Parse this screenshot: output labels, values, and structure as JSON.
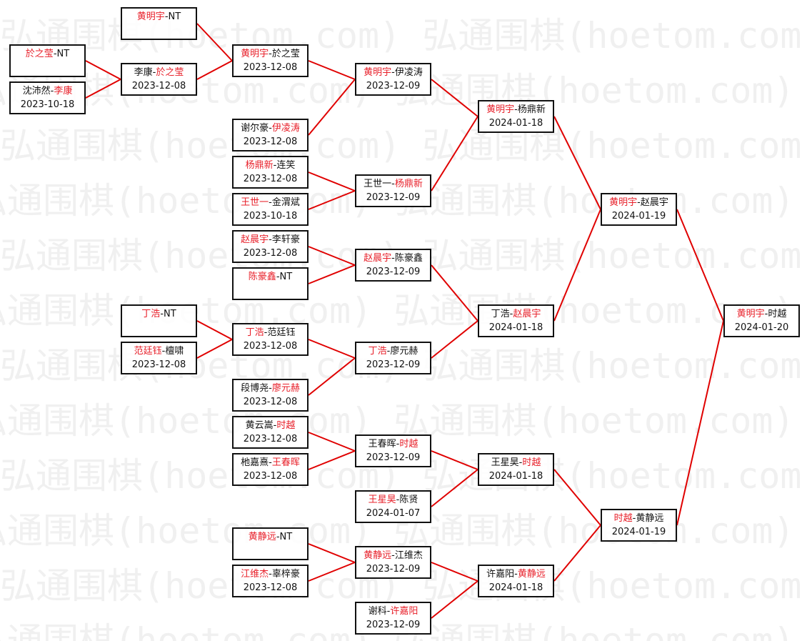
{
  "watermark": "弘通围棋(hoetom.com)",
  "colors": {
    "winner": "#e8202a",
    "connector": "#e00000",
    "border": "#111111"
  },
  "matches": [
    {
      "a": "於之莹",
      "b": "NT",
      "winner": "a",
      "date": "",
      "round": 1,
      "feeds_into": 3
    },
    {
      "a": "沈沛然",
      "b": "李康",
      "winner": "b",
      "date": "2023-10-18",
      "round": 1,
      "feeds_into": 3
    },
    {
      "a": "黄明宇",
      "b": "NT",
      "winner": "a",
      "date": "",
      "round": 2,
      "feeds_into": 6
    },
    {
      "a": "李康",
      "b": "於之莹",
      "winner": "b",
      "date": "2023-12-08",
      "round": 2,
      "feeds_into": 6
    },
    {
      "a": "丁浩",
      "b": "NT",
      "winner": "a",
      "date": "",
      "round": 2,
      "feeds_into": 12
    },
    {
      "a": "范廷钰",
      "b": "檀啸",
      "winner": "a",
      "date": "2023-12-08",
      "round": 2,
      "feeds_into": 12
    },
    {
      "a": "黄明宇",
      "b": "於之莹",
      "winner": "a",
      "date": "2023-12-08",
      "round": 3,
      "feeds_into": 18
    },
    {
      "a": "谢尔豪",
      "b": "伊凌涛",
      "winner": "b",
      "date": "2023-12-08",
      "round": 3,
      "feeds_into": 18
    },
    {
      "a": "杨鼎新",
      "b": "连笑",
      "winner": "a",
      "date": "2023-12-08",
      "round": 3,
      "feeds_into": 19
    },
    {
      "a": "王世一",
      "b": "金渭斌",
      "winner": "a",
      "date": "2023-10-18",
      "round": 3,
      "feeds_into": 19
    },
    {
      "a": "赵晨宇",
      "b": "李轩豪",
      "winner": "a",
      "date": "2023-12-08",
      "round": 3,
      "feeds_into": 20
    },
    {
      "a": "陈豪鑫",
      "b": "NT",
      "winner": "a",
      "date": "",
      "round": 3,
      "feeds_into": 20
    },
    {
      "a": "丁浩",
      "b": "范廷钰",
      "winner": "a",
      "date": "2023-12-08",
      "round": 3,
      "feeds_into": 21
    },
    {
      "a": "段博尧",
      "b": "廖元赫",
      "winner": "b",
      "date": "2023-12-08",
      "round": 3,
      "feeds_into": 21
    },
    {
      "a": "黄云嵩",
      "b": "时越",
      "winner": "b",
      "date": "2023-12-08",
      "round": 3,
      "feeds_into": 22
    },
    {
      "a": "杝嘉熹",
      "b": "王春晖",
      "winner": "b",
      "date": "2023-12-08",
      "round": 3,
      "feeds_into": 22
    },
    {
      "a": "黄静远",
      "b": "NT",
      "winner": "a",
      "date": "",
      "round": 3,
      "feeds_into": 24
    },
    {
      "a": "江维杰",
      "b": "辜梓豪",
      "winner": "a",
      "date": "2023-12-08",
      "round": 3,
      "feeds_into": 24
    },
    {
      "a": "黄明宇",
      "b": "伊凌涛",
      "winner": "a",
      "date": "2023-12-09",
      "round": 4,
      "feeds_into": 26
    },
    {
      "a": "王世一",
      "b": "杨鼎新",
      "winner": "b",
      "date": "2023-12-09",
      "round": 4,
      "feeds_into": 26
    },
    {
      "a": "赵晨宇",
      "b": "陈豪鑫",
      "winner": "a",
      "date": "2023-12-09",
      "round": 4,
      "feeds_into": 27
    },
    {
      "a": "丁浩",
      "b": "廖元赫",
      "winner": "a",
      "date": "2023-12-09",
      "round": 4,
      "feeds_into": 27
    },
    {
      "a": "王春晖",
      "b": "时越",
      "winner": "b",
      "date": "2023-12-09",
      "round": 4,
      "feeds_into": 28
    },
    {
      "a": "王星昊",
      "b": "陈贤",
      "winner": "a",
      "date": "2024-01-07",
      "round": 4,
      "feeds_into": 28
    },
    {
      "a": "黄静远",
      "b": "江维杰",
      "winner": "a",
      "date": "2023-12-09",
      "round": 4,
      "feeds_into": 29
    },
    {
      "a": "谢科",
      "b": "许嘉阳",
      "winner": "b",
      "date": "2023-12-09",
      "round": 4,
      "feeds_into": 29
    },
    {
      "a": "黄明宇",
      "b": "杨鼎新",
      "winner": "a",
      "date": "2024-01-18",
      "round": 5,
      "feeds_into": 30
    },
    {
      "a": "丁浩",
      "b": "赵晨宇",
      "winner": "b",
      "date": "2024-01-18",
      "round": 5,
      "feeds_into": 30
    },
    {
      "a": "王星昊",
      "b": "时越",
      "winner": "b",
      "date": "2024-01-18",
      "round": 5,
      "feeds_into": 31
    },
    {
      "a": "许嘉阳",
      "b": "黄静远",
      "winner": "b",
      "date": "2024-01-18",
      "round": 5,
      "feeds_into": 31
    },
    {
      "a": "黄明宇",
      "b": "赵晨宇",
      "winner": "a",
      "date": "2024-01-19",
      "round": 6,
      "feeds_into": 32
    },
    {
      "a": "时越",
      "b": "黄静远",
      "winner": "a",
      "date": "2024-01-19",
      "round": 6,
      "feeds_into": 32
    },
    {
      "a": "黄明宇",
      "b": "时越",
      "winner": "a",
      "date": "2024-01-20",
      "round": 7,
      "feeds_into": null
    }
  ]
}
